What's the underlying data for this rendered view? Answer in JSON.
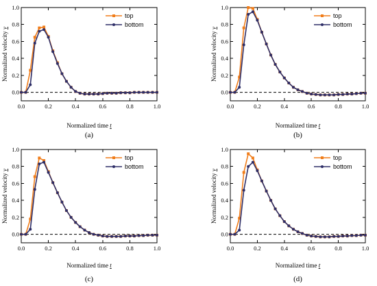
{
  "colors": {
    "top": "#f07d1a",
    "bottom": "#2d2d66",
    "axis": "#000000"
  },
  "chart_data": [
    {
      "type": "line",
      "panel_label": "(a)",
      "xlabel": "Normalized time ",
      "xlabel_var": "t",
      "ylabel": "Normalized velocity ",
      "ylabel_var": "v",
      "xlim": [
        0,
        1.0
      ],
      "ylim": [
        -0.1,
        1.0
      ],
      "xticks": [
        "0.0",
        "0.2",
        "0.4",
        "0.6",
        "0.8",
        "1.0"
      ],
      "yticks": [
        "0.0",
        "0.2",
        "0.4",
        "0.6",
        "0.8",
        "1.0"
      ],
      "baseline": 0,
      "legend": {
        "position": "top-right"
      },
      "series": [
        {
          "name": "top",
          "marker": "square",
          "x": [
            0,
            0.033,
            0.067,
            0.1,
            0.133,
            0.167,
            0.2,
            0.233,
            0.267,
            0.3,
            0.333,
            0.367,
            0.4,
            0.433,
            0.467,
            0.5,
            0.533,
            0.567,
            0.6,
            0.633,
            0.667,
            0.7,
            0.733,
            0.767,
            0.8,
            0.833,
            0.867,
            0.9,
            0.933,
            0.967,
            1.0
          ],
          "y": [
            0,
            0,
            0.26,
            0.65,
            0.76,
            0.77,
            0.66,
            0.49,
            0.35,
            0.22,
            0.13,
            0.06,
            0.01,
            -0.01,
            -0.02,
            -0.02,
            -0.02,
            -0.02,
            -0.015,
            -0.01,
            -0.01,
            -0.01,
            -0.005,
            -0.005,
            -0.005,
            0,
            0,
            0,
            0,
            0,
            0
          ]
        },
        {
          "name": "bottom",
          "marker": "circle",
          "x": [
            0,
            0.033,
            0.067,
            0.1,
            0.133,
            0.167,
            0.2,
            0.233,
            0.267,
            0.3,
            0.333,
            0.367,
            0.4,
            0.433,
            0.467,
            0.5,
            0.533,
            0.567,
            0.6,
            0.633,
            0.667,
            0.7,
            0.733,
            0.767,
            0.8,
            0.833,
            0.867,
            0.9,
            0.933,
            0.967,
            1.0
          ],
          "y": [
            0,
            0,
            0.09,
            0.58,
            0.72,
            0.74,
            0.65,
            0.48,
            0.34,
            0.22,
            0.13,
            0.06,
            0.01,
            -0.01,
            -0.02,
            -0.02,
            -0.02,
            -0.02,
            -0.015,
            -0.01,
            -0.01,
            -0.01,
            -0.005,
            -0.005,
            -0.005,
            0,
            0,
            0,
            0,
            0,
            0
          ]
        }
      ]
    },
    {
      "type": "line",
      "panel_label": "(b)",
      "xlabel": "Normalized time ",
      "xlabel_var": "t",
      "ylabel": "Normalized velocity ",
      "ylabel_var": "v",
      "xlim": [
        0,
        1.0
      ],
      "ylim": [
        -0.1,
        1.0
      ],
      "xticks": [
        "0.0",
        "0.2",
        "0.4",
        "0.6",
        "0.8",
        "1.0"
      ],
      "yticks": [
        "0.0",
        "0.2",
        "0.4",
        "0.6",
        "0.8",
        "1.0"
      ],
      "baseline": 0,
      "legend": {
        "position": "top-right"
      },
      "series": [
        {
          "name": "top",
          "marker": "square",
          "x": [
            0,
            0.033,
            0.067,
            0.1,
            0.133,
            0.167,
            0.2,
            0.233,
            0.267,
            0.3,
            0.333,
            0.367,
            0.4,
            0.433,
            0.467,
            0.5,
            0.533,
            0.567,
            0.6,
            0.633,
            0.667,
            0.7,
            0.733,
            0.767,
            0.8,
            0.833,
            0.867,
            0.9,
            0.933,
            0.967,
            1.0
          ],
          "y": [
            0,
            0,
            0.18,
            0.76,
            1.0,
            0.99,
            0.86,
            0.71,
            0.57,
            0.44,
            0.33,
            0.24,
            0.17,
            0.11,
            0.06,
            0.03,
            0.01,
            -0.01,
            -0.02,
            -0.025,
            -0.03,
            -0.03,
            -0.03,
            -0.03,
            -0.025,
            -0.025,
            -0.02,
            -0.02,
            -0.015,
            -0.01,
            -0.01
          ]
        },
        {
          "name": "bottom",
          "marker": "circle",
          "x": [
            0,
            0.033,
            0.067,
            0.1,
            0.133,
            0.167,
            0.2,
            0.233,
            0.267,
            0.3,
            0.333,
            0.367,
            0.4,
            0.433,
            0.467,
            0.5,
            0.533,
            0.567,
            0.6,
            0.633,
            0.667,
            0.7,
            0.733,
            0.767,
            0.8,
            0.833,
            0.867,
            0.9,
            0.933,
            0.967,
            1.0
          ],
          "y": [
            0,
            0,
            0.06,
            0.56,
            0.92,
            0.95,
            0.85,
            0.71,
            0.57,
            0.44,
            0.33,
            0.24,
            0.17,
            0.11,
            0.06,
            0.03,
            0.01,
            -0.01,
            -0.02,
            -0.025,
            -0.03,
            -0.03,
            -0.03,
            -0.03,
            -0.025,
            -0.025,
            -0.02,
            -0.02,
            -0.015,
            -0.01,
            -0.01
          ]
        }
      ]
    },
    {
      "type": "line",
      "panel_label": "(c)",
      "xlabel": "Normalized time ",
      "xlabel_var": "t",
      "ylabel": "Normalized velocity ",
      "ylabel_var": "v",
      "xlim": [
        0,
        1.0
      ],
      "ylim": [
        -0.1,
        1.0
      ],
      "xticks": [
        "0.0",
        "0.2",
        "0.4",
        "0.6",
        "0.8",
        "1.0"
      ],
      "yticks": [
        "0.0",
        "0.2",
        "0.4",
        "0.6",
        "0.8",
        "1.0"
      ],
      "baseline": 0,
      "legend": {
        "position": "top-right"
      },
      "series": [
        {
          "name": "top",
          "marker": "square",
          "x": [
            0,
            0.033,
            0.067,
            0.1,
            0.133,
            0.167,
            0.2,
            0.233,
            0.267,
            0.3,
            0.333,
            0.367,
            0.4,
            0.433,
            0.467,
            0.5,
            0.533,
            0.567,
            0.6,
            0.633,
            0.667,
            0.7,
            0.733,
            0.767,
            0.8,
            0.833,
            0.867,
            0.9,
            0.933,
            0.967,
            1.0
          ],
          "y": [
            0,
            0,
            0.18,
            0.68,
            0.9,
            0.87,
            0.74,
            0.61,
            0.49,
            0.38,
            0.28,
            0.2,
            0.14,
            0.09,
            0.05,
            0.02,
            0,
            -0.01,
            -0.02,
            -0.025,
            -0.025,
            -0.025,
            -0.025,
            -0.02,
            -0.02,
            -0.02,
            -0.015,
            -0.015,
            -0.01,
            -0.01,
            -0.01
          ]
        },
        {
          "name": "bottom",
          "marker": "circle",
          "x": [
            0,
            0.033,
            0.067,
            0.1,
            0.133,
            0.167,
            0.2,
            0.233,
            0.267,
            0.3,
            0.333,
            0.367,
            0.4,
            0.433,
            0.467,
            0.5,
            0.533,
            0.567,
            0.6,
            0.633,
            0.667,
            0.7,
            0.733,
            0.767,
            0.8,
            0.833,
            0.867,
            0.9,
            0.933,
            0.967,
            1.0
          ],
          "y": [
            0,
            0,
            0.06,
            0.53,
            0.83,
            0.85,
            0.73,
            0.61,
            0.49,
            0.38,
            0.28,
            0.2,
            0.14,
            0.09,
            0.05,
            0.02,
            0,
            -0.01,
            -0.02,
            -0.025,
            -0.025,
            -0.025,
            -0.025,
            -0.02,
            -0.02,
            -0.02,
            -0.015,
            -0.015,
            -0.01,
            -0.01,
            -0.01
          ]
        }
      ]
    },
    {
      "type": "line",
      "panel_label": "(d)",
      "xlabel": "Normalized time ",
      "xlabel_var": "t",
      "ylabel": "Normalized velocity ",
      "ylabel_var": "v",
      "xlim": [
        0,
        1.0
      ],
      "ylim": [
        -0.1,
        1.0
      ],
      "xticks": [
        "0.0",
        "0.2",
        "0.4",
        "0.6",
        "0.8",
        "1.0"
      ],
      "yticks": [
        "0.0",
        "0.2",
        "0.4",
        "0.6",
        "0.8",
        "1.0"
      ],
      "baseline": 0,
      "legend": {
        "position": "top-right"
      },
      "series": [
        {
          "name": "top",
          "marker": "square",
          "x": [
            0,
            0.033,
            0.067,
            0.1,
            0.133,
            0.167,
            0.2,
            0.233,
            0.267,
            0.3,
            0.333,
            0.367,
            0.4,
            0.433,
            0.467,
            0.5,
            0.533,
            0.567,
            0.6,
            0.633,
            0.667,
            0.7,
            0.733,
            0.767,
            0.8,
            0.833,
            0.867,
            0.9,
            0.933,
            0.967,
            1.0
          ],
          "y": [
            0,
            0,
            0.19,
            0.73,
            0.95,
            0.9,
            0.76,
            0.63,
            0.51,
            0.4,
            0.3,
            0.22,
            0.15,
            0.1,
            0.06,
            0.03,
            0.01,
            -0.01,
            -0.02,
            -0.025,
            -0.03,
            -0.03,
            -0.03,
            -0.025,
            -0.025,
            -0.02,
            -0.02,
            -0.015,
            -0.015,
            -0.01,
            -0.01
          ]
        },
        {
          "name": "bottom",
          "marker": "circle",
          "x": [
            0,
            0.033,
            0.067,
            0.1,
            0.133,
            0.167,
            0.2,
            0.233,
            0.267,
            0.3,
            0.333,
            0.367,
            0.4,
            0.433,
            0.467,
            0.5,
            0.533,
            0.567,
            0.6,
            0.633,
            0.667,
            0.7,
            0.733,
            0.767,
            0.8,
            0.833,
            0.867,
            0.9,
            0.933,
            0.967,
            1.0
          ],
          "y": [
            0,
            0,
            0.05,
            0.52,
            0.8,
            0.85,
            0.75,
            0.63,
            0.51,
            0.4,
            0.3,
            0.22,
            0.15,
            0.1,
            0.06,
            0.03,
            0.01,
            -0.01,
            -0.02,
            -0.025,
            -0.03,
            -0.03,
            -0.03,
            -0.025,
            -0.025,
            -0.02,
            -0.02,
            -0.015,
            -0.015,
            -0.01,
            -0.01
          ]
        }
      ]
    }
  ]
}
